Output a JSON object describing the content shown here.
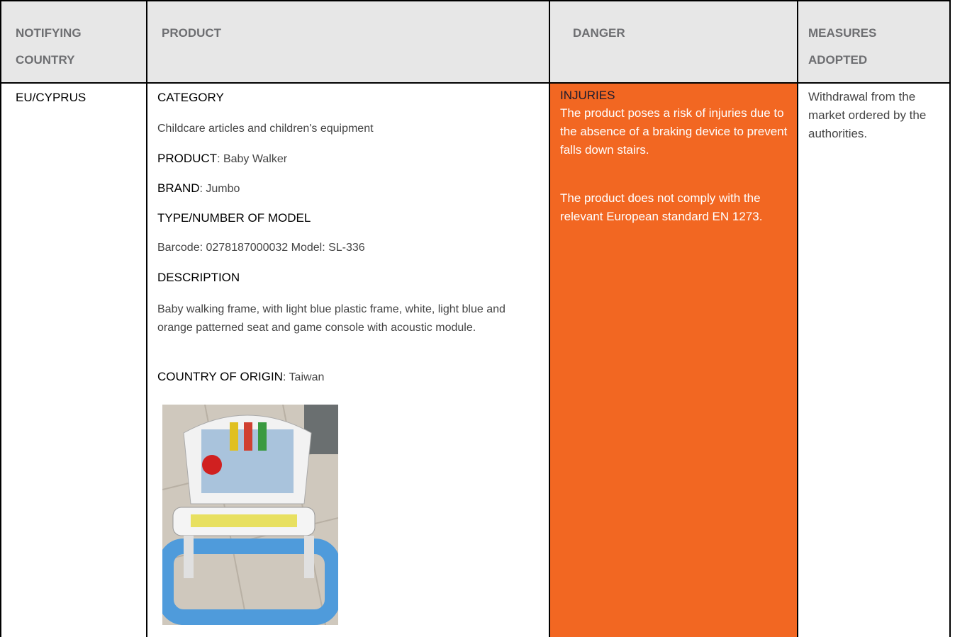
{
  "table": {
    "headers": [
      "NOTIFYING COUNTRY",
      "PRODUCT",
      "DANGER",
      "MEASURES ADOPTED"
    ],
    "row": {
      "country": "EU/CYPRUS",
      "product": {
        "category_label": "CATEGORY",
        "category": "Childcare articles and children's equipment",
        "product_label": "PRODUCT",
        "product": ": Baby Walker",
        "brand_label": "BRAND",
        "brand": ": Jumbo",
        "model_label": "TYPE/NUMBER OF MODEL",
        "model": "Barcode: 0278187000032 Model: SL-336",
        "description_label": "DESCRIPTION",
        "description": "Baby walking frame, with light blue plastic frame, white, light blue and orange patterned seat and game console with acoustic module.",
        "origin_label": "COUNTRY OF ORIGIN",
        "origin": ": Taiwan"
      },
      "danger": {
        "title": "INJURIES",
        "paragraphs": [
          "The product poses a risk of injuries due to the absence of a braking device to prevent falls down stairs.",
          "The product does not comply with the relevant European standard EN 1273."
        ]
      },
      "measures": "Withdrawal from the market ordered by the authorities."
    }
  }
}
